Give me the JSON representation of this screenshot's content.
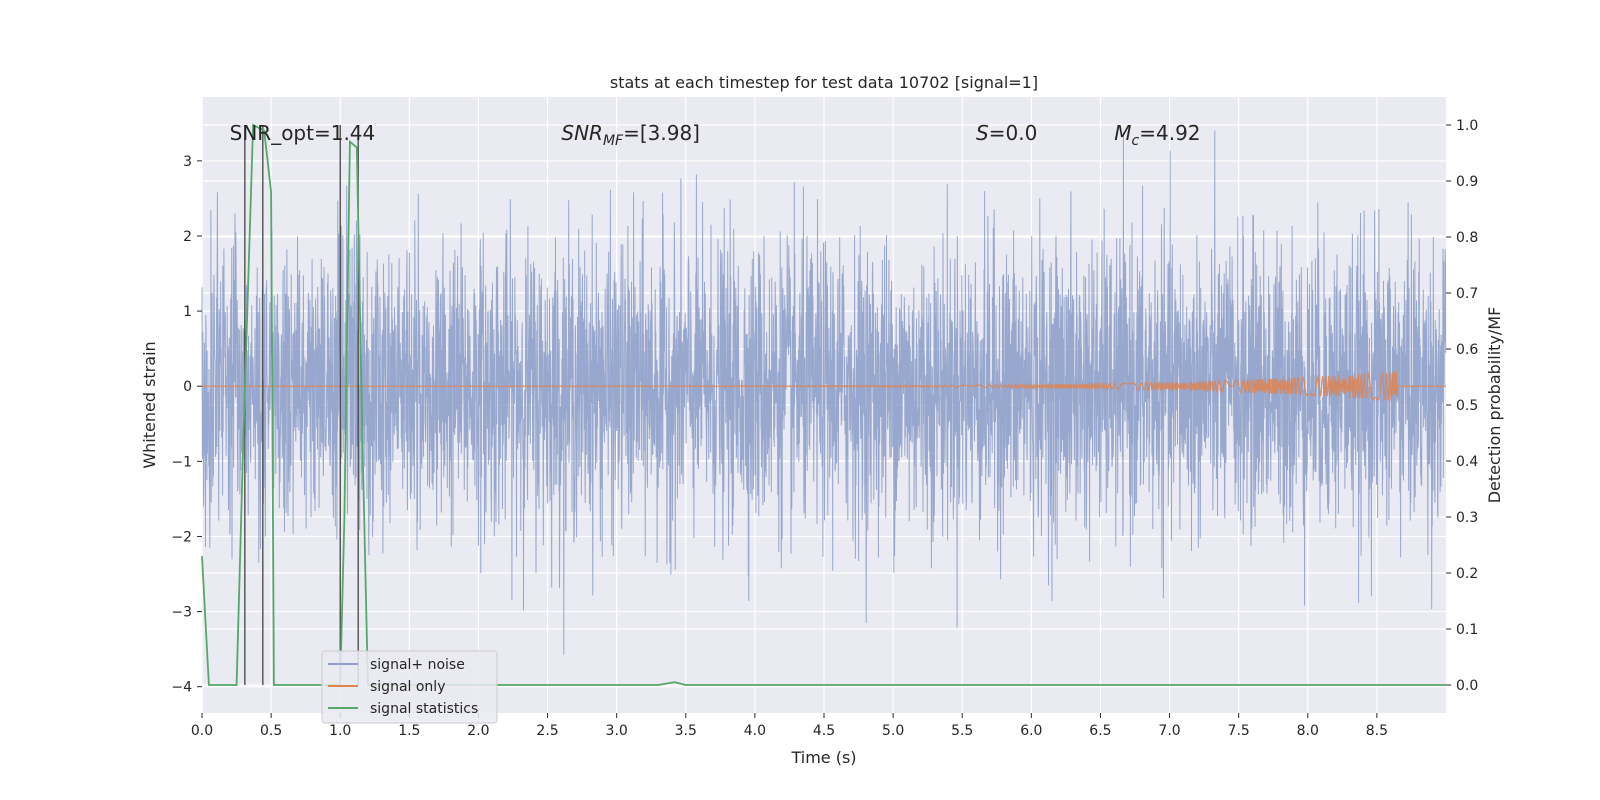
{
  "chart_data": {
    "type": "line",
    "title": "stats at each timestep for test data 10702 [signal=1]",
    "xlabel": "Time (s)",
    "ylabel_left": "Whitened strain",
    "ylabel_right": "Detection probability/MF",
    "xlim": [
      0.0,
      9.0
    ],
    "ylim_left": [
      -4.35,
      3.85
    ],
    "ylim_right": [
      -0.05,
      1.05
    ],
    "x_ticks": [
      "0.0",
      "0.5",
      "1.0",
      "1.5",
      "2.0",
      "2.5",
      "3.0",
      "3.5",
      "4.0",
      "4.5",
      "5.0",
      "5.5",
      "6.0",
      "6.5",
      "7.0",
      "7.5",
      "8.0",
      "8.5"
    ],
    "x_tick_values": [
      0.0,
      0.5,
      1.0,
      1.5,
      2.0,
      2.5,
      3.0,
      3.5,
      4.0,
      4.5,
      5.0,
      5.5,
      6.0,
      6.5,
      7.0,
      7.5,
      8.0,
      8.5
    ],
    "y_left_ticks": [
      "−4",
      "−3",
      "−2",
      "−1",
      "0",
      "1",
      "2",
      "3"
    ],
    "y_left_tick_values": [
      -4,
      -3,
      -2,
      -1,
      0,
      1,
      2,
      3
    ],
    "y_right_ticks": [
      "0.0",
      "0.1",
      "0.2",
      "0.3",
      "0.4",
      "0.5",
      "0.6",
      "0.7",
      "0.8",
      "0.9",
      "1.0"
    ],
    "y_right_tick_values": [
      0.0,
      0.1,
      0.2,
      0.3,
      0.4,
      0.5,
      0.6,
      0.7,
      0.8,
      0.9,
      1.0
    ],
    "annotations": [
      {
        "text": "SNR_opt=1.44",
        "x": 0.2,
        "y_frac": 0.93
      },
      {
        "text_main": "SNR",
        "text_sub": "MF",
        "text_rest": "=[3.98]",
        "x": 2.6,
        "y_frac": 0.93
      },
      {
        "text_main": "S",
        "text_rest": "=0.0",
        "x": 5.6,
        "y_frac": 0.93
      },
      {
        "text_main": "M",
        "text_sub": "c",
        "text_rest": "=4.92",
        "x": 6.6,
        "y_frac": 0.93
      }
    ],
    "series": [
      {
        "name": "signal+ noise",
        "color": "#8ea0c9",
        "sigma": 0.95,
        "length_s": 9.0
      },
      {
        "name": "signal only",
        "color": "#dd8452",
        "chirp_end": 8.65,
        "chirp_amp_max": 0.2
      },
      {
        "name": "signal statistics",
        "color": "#55a868",
        "x": [
          0.0,
          0.05,
          0.25,
          0.3,
          0.37,
          0.45,
          0.5,
          0.52,
          1.0,
          1.03,
          1.07,
          1.12,
          1.16,
          1.2,
          3.3,
          3.42,
          3.5,
          9.0
        ],
        "y": [
          0.23,
          0.0,
          0.0,
          0.45,
          1.0,
          0.99,
          0.88,
          0.0,
          0.0,
          0.3,
          0.97,
          0.96,
          0.45,
          0.0,
          0.0,
          0.005,
          0.0,
          0.0
        ]
      }
    ],
    "vlines": [
      0.31,
      0.44,
      1.0,
      1.13
    ],
    "legend": {
      "position": "lower-left",
      "entries": [
        {
          "label": "signal+ noise",
          "color": "#8ea0c9"
        },
        {
          "label": "signal only",
          "color": "#dd8452"
        },
        {
          "label": "signal statistics",
          "color": "#55a868"
        }
      ]
    },
    "grid": true
  }
}
